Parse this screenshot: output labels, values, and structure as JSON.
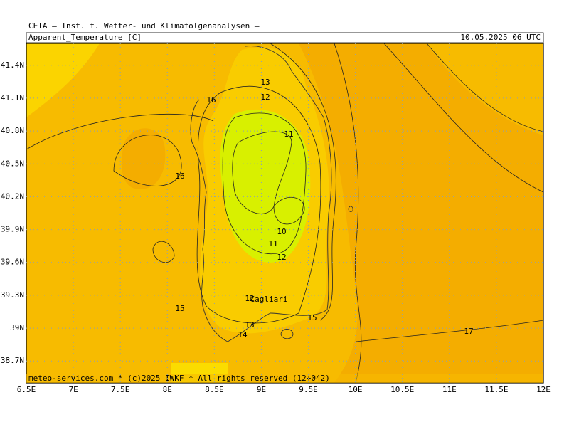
{
  "header": {
    "source": "CETA — Inst. f. Wetter- und Klimafolgenanalysen —",
    "parameter": "Apparent_Temperature [C]",
    "valid_time": "10.05.2025 06 UTC"
  },
  "footer": "meteo-services.com * (c)2025 IWKF * All rights reserved (12+042)",
  "map": {
    "lon_range": [
      6.5,
      12
    ],
    "lat_range": [
      38.5,
      41.6
    ],
    "lon_ticks": [
      {
        "value": 6.5,
        "label": "6.5E"
      },
      {
        "value": 7,
        "label": "7E"
      },
      {
        "value": 7.5,
        "label": "7.5E"
      },
      {
        "value": 8,
        "label": "8E"
      },
      {
        "value": 8.5,
        "label": "8.5E"
      },
      {
        "value": 9,
        "label": "9E"
      },
      {
        "value": 9.5,
        "label": "9.5E"
      },
      {
        "value": 10,
        "label": "10E"
      },
      {
        "value": 10.5,
        "label": "10.5E"
      },
      {
        "value": 11,
        "label": "11E"
      },
      {
        "value": 11.5,
        "label": "11.5E"
      },
      {
        "value": 12,
        "label": "12E"
      }
    ],
    "lat_ticks": [
      {
        "value": 41.4,
        "label": "41.4N"
      },
      {
        "value": 41.1,
        "label": "41.1N"
      },
      {
        "value": 40.8,
        "label": "40.8N"
      },
      {
        "value": 40.5,
        "label": "40.5N"
      },
      {
        "value": 40.2,
        "label": "40.2N"
      },
      {
        "value": 39.9,
        "label": "39.9N"
      },
      {
        "value": 39.6,
        "label": "39.6N"
      },
      {
        "value": 39.3,
        "label": "39.3N"
      },
      {
        "value": 39,
        "label": "39N"
      },
      {
        "value": 38.7,
        "label": "38.7N"
      }
    ],
    "contour_labels": [
      "13",
      "12",
      "16",
      "11",
      "16",
      "10",
      "11",
      "12",
      "12",
      "15",
      "13",
      "15",
      "14",
      "17"
    ],
    "place_label": "Cagliari"
  }
}
